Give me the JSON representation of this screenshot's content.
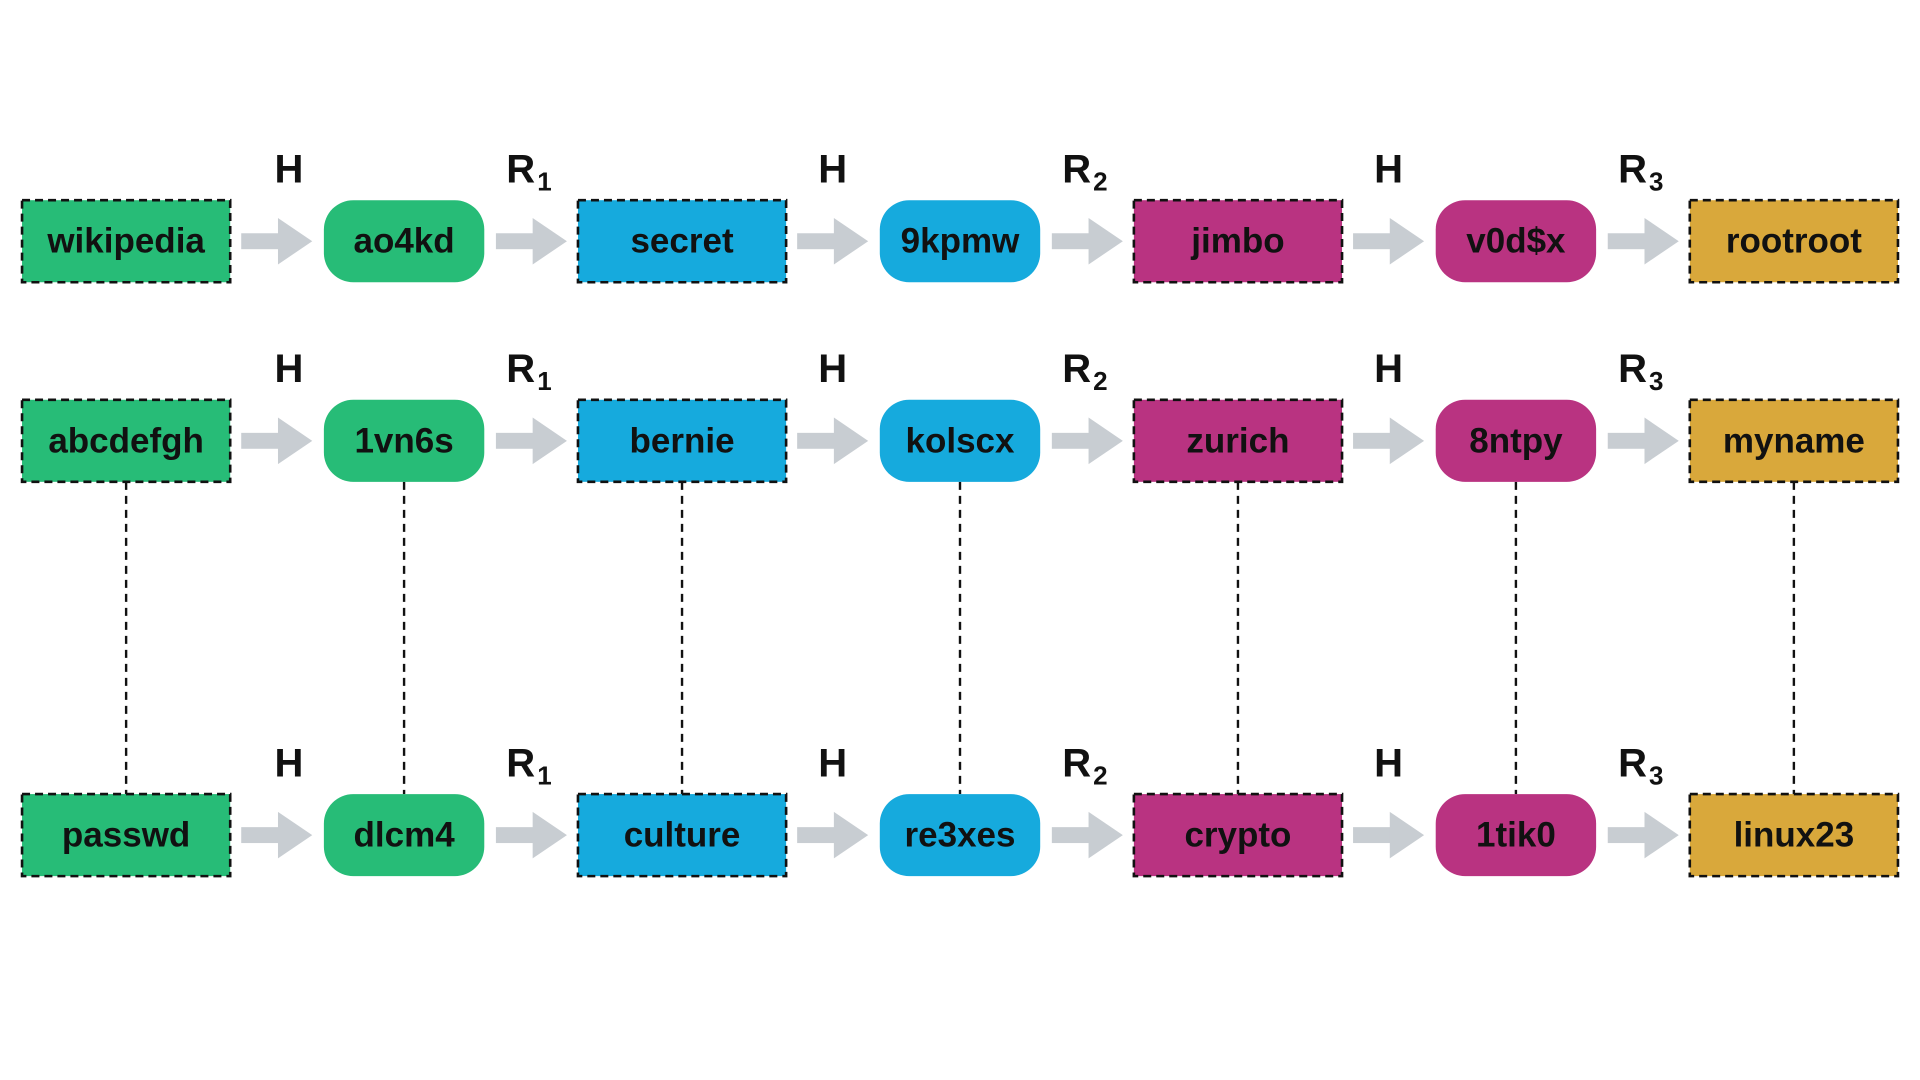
{
  "colors": {
    "green": "#27BC77",
    "blue": "#16AADD",
    "magenta": "#B93381",
    "gold": "#D9A83B",
    "arrow": "#C8CDD2",
    "dash": "#111111"
  },
  "node_styles": [
    "plain",
    "hash",
    "plain",
    "hash",
    "plain",
    "hash",
    "plain"
  ],
  "node_colors": [
    "green",
    "green",
    "blue",
    "blue",
    "magenta",
    "magenta",
    "gold"
  ],
  "operations": [
    {
      "label": "H",
      "sub": ""
    },
    {
      "label": "R",
      "sub": "1"
    },
    {
      "label": "H",
      "sub": ""
    },
    {
      "label": "R",
      "sub": "2"
    },
    {
      "label": "H",
      "sub": ""
    },
    {
      "label": "R",
      "sub": "3"
    }
  ],
  "chains": [
    {
      "nodes": [
        "wikipedia",
        "ao4kd",
        "secret",
        "9kpmw",
        "jimbo",
        "v0d$x",
        "rootroot"
      ]
    },
    {
      "nodes": [
        "abcdefgh",
        "1vn6s",
        "bernie",
        "kolscx",
        "zurich",
        "8ntpy",
        "myname"
      ]
    },
    {
      "nodes": [
        "passwd",
        "dlcm4",
        "culture",
        "re3xes",
        "crypto",
        "1tik0",
        "linux23"
      ]
    }
  ],
  "connections": [
    {
      "from_chain": 1,
      "to_chain": 2
    }
  ]
}
